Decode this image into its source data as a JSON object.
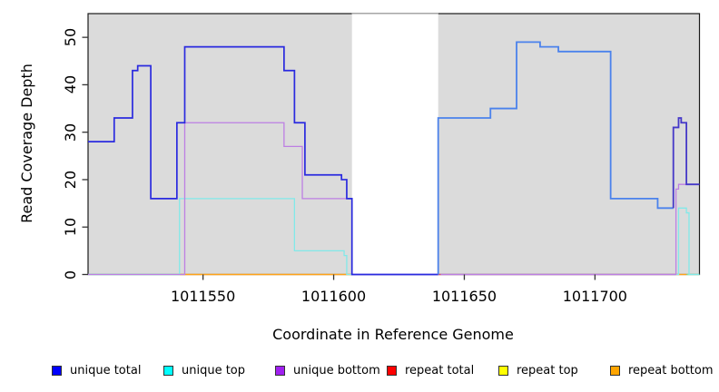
{
  "chart_data": {
    "type": "line",
    "line_style": "step-after",
    "title": "",
    "xlabel": "Coordinate in Reference Genome",
    "ylabel": "Read Coverage Depth",
    "xlim": [
      1011506,
      1011740
    ],
    "ylim": [
      0,
      55
    ],
    "x_ticks": [
      1011550,
      1011600,
      1011650,
      1011700
    ],
    "y_ticks": [
      0,
      10,
      20,
      30,
      40,
      50
    ],
    "grid": false,
    "legend_position": "bottom",
    "plot_bg": "#DBDBDB",
    "border_color": "#1a1a1a",
    "no_data_region": {
      "from": 1011607,
      "to": 1011640,
      "color": "#FFFFFF",
      "top_edge_color": "#A6A6A6"
    },
    "series": [
      {
        "name": "unique total",
        "legend_color": "#0000FF",
        "segments": [
          {
            "color": "#2A2ADF",
            "width": 1.7,
            "points": [
              [
                1011506,
                28
              ],
              [
                1011516,
                33
              ],
              [
                1011523,
                43
              ],
              [
                1011525,
                44
              ],
              [
                1011530,
                16
              ],
              [
                1011540,
                32
              ],
              [
                1011543,
                48
              ],
              [
                1011581,
                43
              ],
              [
                1011585,
                32
              ],
              [
                1011589,
                21
              ],
              [
                1011603,
                20
              ],
              [
                1011605,
                16
              ],
              [
                1011607,
                0
              ]
            ],
            "end": 1011640
          },
          {
            "color": "#4B82EC",
            "width": 1.8,
            "points": [
              [
                1011640,
                0
              ],
              [
                1011640,
                33
              ],
              [
                1011660,
                35
              ],
              [
                1011670,
                49
              ],
              [
                1011679,
                48
              ],
              [
                1011686,
                47
              ],
              [
                1011706,
                16
              ],
              [
                1011724,
                14
              ]
            ],
            "end": 1011730
          },
          {
            "color": "#4538C8",
            "width": 1.8,
            "points": [
              [
                1011730,
                14
              ],
              [
                1011730,
                31
              ],
              [
                1011732,
                33
              ],
              [
                1011733,
                32
              ],
              [
                1011735,
                19
              ]
            ],
            "end": 1011740
          }
        ]
      },
      {
        "name": "unique top",
        "legend_color": "#00FFFF",
        "segments": [
          {
            "color": "#82E9E9",
            "width": 1.3,
            "points": [
              [
                1011506,
                0
              ],
              [
                1011541,
                16
              ],
              [
                1011585,
                5
              ],
              [
                1011604,
                4
              ],
              [
                1011605,
                0
              ]
            ],
            "end": 1011607
          },
          {
            "color": "#82E9E9",
            "width": 1.3,
            "points": [
              [
                1011641,
                0
              ],
              [
                1011732,
                14
              ],
              [
                1011735,
                13
              ],
              [
                1011736,
                0
              ]
            ],
            "end": 1011740
          }
        ]
      },
      {
        "name": "unique bottom",
        "legend_color": "#A020F0",
        "segments": [
          {
            "color": "#BD7FE3",
            "width": 1.3,
            "points": [
              [
                1011506,
                0
              ],
              [
                1011543,
                32
              ],
              [
                1011581,
                27
              ],
              [
                1011588,
                16
              ],
              [
                1011607,
                0
              ]
            ],
            "end": 1011640
          },
          {
            "color": "#BD7FE3",
            "width": 1.3,
            "points": [
              [
                1011641,
                0
              ],
              [
                1011731,
                18
              ],
              [
                1011732,
                19
              ]
            ],
            "end": 1011740
          }
        ]
      },
      {
        "name": "repeat total",
        "legend_color": "#FF0000",
        "segments": [
          {
            "color": "#D85070",
            "width": 1.4,
            "points": [
              [
                1011640,
                0
              ]
            ],
            "end": 1011731
          }
        ]
      },
      {
        "name": "repeat top",
        "legend_color": "#FFFF00",
        "segments": [
          {
            "color": "#8FE08F",
            "width": 1.4,
            "points": [
              [
                1011506,
                0
              ]
            ],
            "end": 1011541
          },
          {
            "color": "#8FE08F",
            "width": 1.4,
            "points": [
              [
                1011735,
                0
              ]
            ],
            "end": 1011740
          }
        ]
      },
      {
        "name": "repeat bottom",
        "legend_color": "#FFA500",
        "segments": [
          {
            "color": "#FFA319",
            "width": 1.4,
            "points": [
              [
                1011541,
                0
              ]
            ],
            "end": 1011607
          },
          {
            "color": "#FFA319",
            "width": 1.4,
            "points": [
              [
                1011731,
                0
              ]
            ],
            "end": 1011735
          }
        ]
      }
    ]
  }
}
